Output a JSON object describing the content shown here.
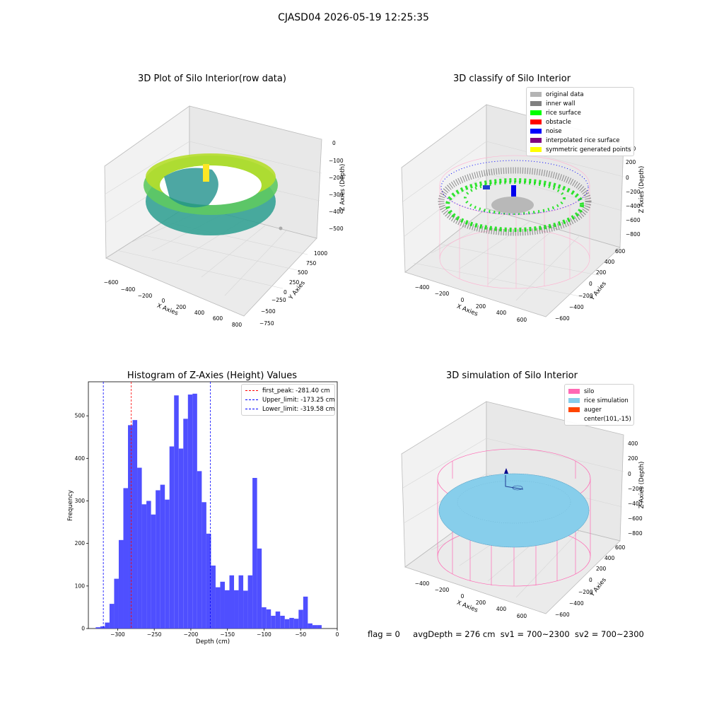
{
  "figure": {
    "suptitle": "CJASD04 2026-05-19 12:25:35"
  },
  "panel_tl": {
    "title": "3D Plot of Silo Interior(row data)",
    "xlabel": "X Axies",
    "ylabel": "Y Axies",
    "zlabel": "Z Axies (Depth)",
    "xticks": [
      "−600",
      "−400",
      "−200",
      "0",
      "200",
      "400",
      "600",
      "800"
    ],
    "yticks": [
      "−750",
      "−500",
      "−250",
      "0",
      "250",
      "500",
      "750",
      "1000"
    ],
    "zticks": [
      "0",
      "−100",
      "−200",
      "−300",
      "−400",
      "−500"
    ]
  },
  "panel_tr": {
    "title": "3D classify of Silo Interior",
    "xlabel": "X Axies",
    "ylabel": "Y Axies",
    "zlabel": "Z Axies (Depth)",
    "xticks": [
      "−400",
      "−200",
      "0",
      "200",
      "400",
      "600"
    ],
    "yticks": [
      "−600",
      "−400",
      "−200",
      "0",
      "200",
      "400",
      "600"
    ],
    "zticks": [
      "400",
      "200",
      "0",
      "−200",
      "−400",
      "−600",
      "−800"
    ],
    "legend": [
      {
        "label": "original data",
        "color": "#b4b4b4"
      },
      {
        "label": "inner wall",
        "color": "#808080"
      },
      {
        "label": "rice surface",
        "color": "#00ff00"
      },
      {
        "label": "obstacle",
        "color": "#ff0000"
      },
      {
        "label": "noise",
        "color": "#0000ff"
      },
      {
        "label": "interpolated rice surface",
        "color": "#800080"
      },
      {
        "label": "symmetric generated points",
        "color": "#ffff00"
      }
    ]
  },
  "panel_br": {
    "title": "3D simulation of Silo Interior",
    "xlabel": "X Axies",
    "ylabel": "Y Axies",
    "zlabel": "Z Axies (Depth)",
    "xticks": [
      "−400",
      "−200",
      "0",
      "200",
      "400",
      "600"
    ],
    "yticks": [
      "−600",
      "−400",
      "−200",
      "0",
      "200",
      "400",
      "600"
    ],
    "zticks": [
      "400",
      "200",
      "0",
      "−200",
      "−400",
      "−600",
      "−800"
    ],
    "legend": [
      {
        "label": "silo",
        "color": "#ff69b4"
      },
      {
        "label": "rice simulation",
        "color": "#87ceeb"
      },
      {
        "label": "auger",
        "color": "#ff4500"
      },
      {
        "label": "center(101,-15)",
        "color": ""
      }
    ]
  },
  "status": {
    "flag": "flag = 0",
    "avg_depth": "avgDepth = 276 cm",
    "sv1": "sv1 = 700~2300",
    "sv2": "sv2 = 700~2300"
  },
  "chart_data": [
    {
      "type": "bar",
      "title": "Histogram of Z-Axies (Height) Values",
      "xlabel": "Depth (cm)",
      "ylabel": "Frequency",
      "xlim": [
        -340,
        0
      ],
      "ylim": [
        0,
        580
      ],
      "xticks": [
        -300,
        -250,
        -200,
        -150,
        -100,
        -50,
        0
      ],
      "yticks": [
        0,
        100,
        200,
        300,
        400,
        500
      ],
      "bar_color": "#4b4bff",
      "bin_width": 6.3,
      "bin_start": -330.0,
      "values": [
        3,
        5,
        14,
        58,
        117,
        208,
        330,
        478,
        490,
        378,
        292,
        300,
        268,
        325,
        338,
        303,
        428,
        548,
        423,
        493,
        550,
        552,
        370,
        297,
        223,
        148,
        97,
        110,
        90,
        125,
        90,
        125,
        89,
        125,
        354,
        188,
        50,
        45,
        30,
        40,
        30,
        22,
        25,
        23,
        44,
        75,
        12,
        8,
        8
      ],
      "vlines": [
        {
          "x": -281.4,
          "label": "first_peak: -281.40 cm",
          "color": "#ff0000"
        },
        {
          "x": -173.25,
          "label": "Upper_limit: -173.25 cm",
          "color": "#0000ff"
        },
        {
          "x": -319.58,
          "label": "Lower_limit: -319.58 cm",
          "color": "#0000ff"
        }
      ]
    }
  ]
}
